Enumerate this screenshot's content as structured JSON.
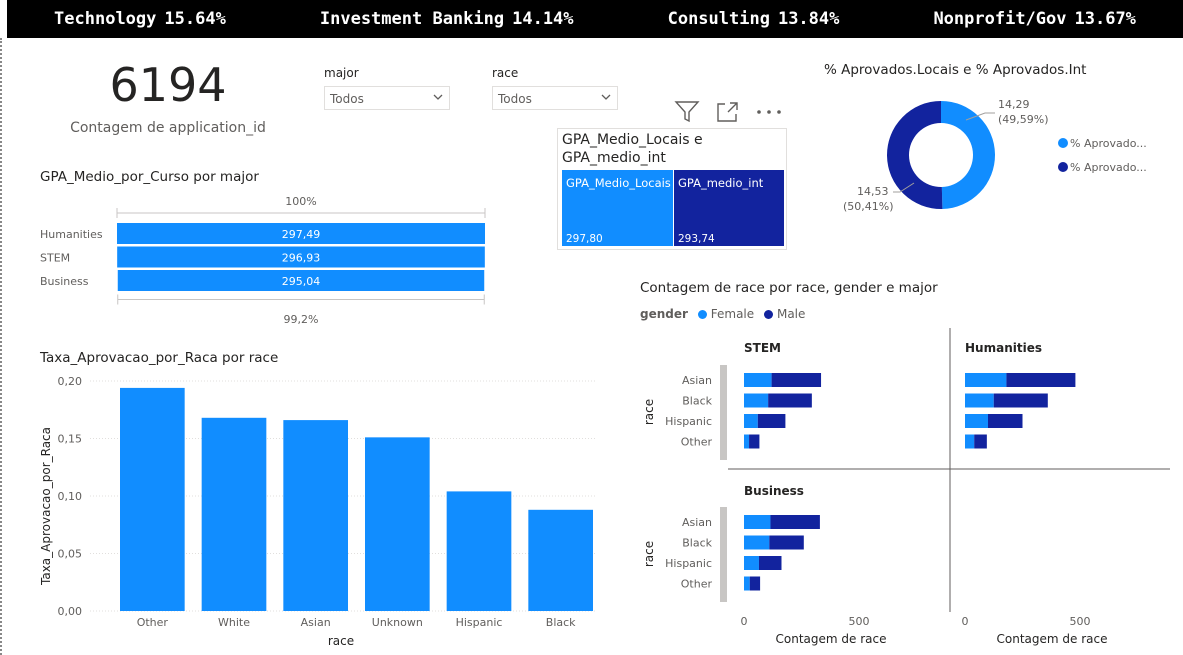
{
  "ticker": {
    "items": [
      {
        "label": "Technology",
        "value": "15.64%"
      },
      {
        "label": "Investment Banking",
        "value": "14.14%"
      },
      {
        "label": "Consulting",
        "value": "13.84%"
      },
      {
        "label": "Nonprofit/Gov",
        "value": "13.67%"
      }
    ]
  },
  "kpi": {
    "value": "6194",
    "label": "Contagem de application_id"
  },
  "slicers": {
    "major": {
      "title": "major",
      "selected": "Todos"
    },
    "race": {
      "title": "race",
      "selected": "Todos"
    }
  },
  "colors": {
    "light": "#118dff",
    "dark": "#12239e",
    "grid": "#c8c6c4"
  },
  "chart_data": [
    {
      "id": "funnel",
      "type": "bar",
      "title": "GPA_Medio_por_Curso por major",
      "categories": [
        "Humanities",
        "STEM",
        "Business"
      ],
      "values": [
        297.49,
        296.93,
        295.04
      ],
      "value_labels": [
        "297,49",
        "296,93",
        "295,04"
      ],
      "top_label": "100%",
      "bottom_label": "99,2%"
    },
    {
      "id": "race_bar",
      "type": "bar",
      "title": "Taxa_Aprovacao_por_Raca por race",
      "xlabel": "race",
      "ylabel": "Taxa_Aprovacao_por_Raca",
      "categories": [
        "Other",
        "White",
        "Asian",
        "Unknown",
        "Hispanic",
        "Black"
      ],
      "values": [
        0.194,
        0.168,
        0.166,
        0.151,
        0.104,
        0.088
      ],
      "ylim": [
        0,
        0.2
      ],
      "yticks": [
        0,
        0.05,
        0.1,
        0.15,
        0.2
      ],
      "ytick_labels": [
        "0,00",
        "0,05",
        "0,10",
        "0,15",
        "0,20"
      ]
    },
    {
      "id": "treemap",
      "type": "bar",
      "title": "GPA_Medio_Locais e GPA_medio_int",
      "categories": [
        "GPA_Medio_Locais",
        "GPA_medio_int"
      ],
      "values": [
        297.8,
        293.74
      ],
      "value_labels": [
        "297,80",
        "293,74"
      ]
    },
    {
      "id": "donut",
      "type": "pie",
      "title": "% Aprovados.Locais e % Aprovados.Int",
      "series": [
        {
          "name": "% Aprovado...",
          "value": 14.29,
          "label": "14,29",
          "pct": "(49,59%)"
        },
        {
          "name": "% Aprovado...",
          "value": 14.53,
          "label": "14,53",
          "pct": "(50,41%)"
        }
      ]
    },
    {
      "id": "small_multiples",
      "type": "bar",
      "title": "Contagem de race por race, gender e major",
      "legend_title": "gender",
      "legend": [
        "Female",
        "Male"
      ],
      "ylabel": "race",
      "xlabel": "Contagem de race",
      "xticks": [
        0,
        500
      ],
      "xtick_labels": [
        "0",
        "500"
      ],
      "categories": [
        "Asian",
        "Black",
        "Hispanic",
        "Other"
      ],
      "panels": [
        {
          "name": "STEM",
          "female": [
            120,
            105,
            60,
            22
          ],
          "male": [
            215,
            190,
            120,
            45
          ]
        },
        {
          "name": "Humanities",
          "female": [
            180,
            125,
            100,
            40
          ],
          "male": [
            300,
            235,
            150,
            55
          ]
        },
        {
          "name": "Business",
          "female": [
            115,
            110,
            65,
            25
          ],
          "male": [
            215,
            150,
            98,
            45
          ]
        }
      ]
    }
  ],
  "toolbar": {
    "filter": "filter-icon",
    "focus": "focus-mode-icon",
    "more": "more-options-icon"
  }
}
